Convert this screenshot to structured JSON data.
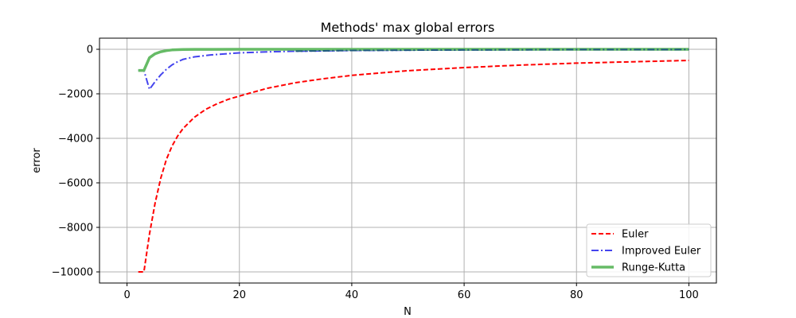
{
  "chart_data": {
    "type": "line",
    "title": "Methods' max global errors",
    "xlabel": "N",
    "ylabel": "error",
    "xlim": [
      -4.9,
      104.9
    ],
    "ylim": [
      -10500,
      500
    ],
    "xticks": [
      0,
      20,
      40,
      60,
      80,
      100
    ],
    "yticks": [
      -10000,
      -8000,
      -6000,
      -4000,
      -2000,
      0
    ],
    "xtick_labels": [
      "0",
      "20",
      "40",
      "60",
      "80",
      "100"
    ],
    "ytick_labels": [
      "−10000",
      "−8000",
      "−6000",
      "−4000",
      "−2000",
      "0"
    ],
    "grid": true,
    "legend_position": "lower-right",
    "series": [
      {
        "name": "Euler",
        "color": "#ff0000",
        "style": "dashed",
        "x": [
          2,
          3,
          4,
          5,
          6,
          7,
          8,
          9,
          10,
          12,
          14,
          16,
          18,
          20,
          25,
          30,
          35,
          40,
          50,
          60,
          70,
          80,
          90,
          100
        ],
        "y": [
          -10000,
          -10000,
          -8300,
          -6900,
          -5800,
          -4950,
          -4350,
          -3900,
          -3550,
          -3050,
          -2700,
          -2450,
          -2250,
          -2100,
          -1750,
          -1500,
          -1320,
          -1170,
          -960,
          -820,
          -710,
          -620,
          -560,
          -500
        ]
      },
      {
        "name": "Improved Euler",
        "color": "#4444ee",
        "style": "dashdot",
        "x": [
          2,
          3,
          4,
          5,
          6,
          7,
          8,
          9,
          10,
          12,
          15,
          20,
          25,
          30,
          40,
          50,
          60,
          80,
          100
        ],
        "y": [
          -950,
          -950,
          -1800,
          -1450,
          -1150,
          -900,
          -700,
          -560,
          -450,
          -340,
          -250,
          -160,
          -115,
          -85,
          -55,
          -38,
          -28,
          -15,
          -10
        ]
      },
      {
        "name": "Runge-Kutta",
        "color": "#66bb66",
        "style": "solid",
        "x": [
          2,
          3,
          4,
          5,
          6,
          7,
          8,
          10,
          12,
          15,
          20,
          30,
          40,
          60,
          80,
          100
        ],
        "y": [
          -950,
          -950,
          -380,
          -200,
          -110,
          -60,
          -30,
          -10,
          -5,
          -2,
          -1,
          0,
          0,
          0,
          0,
          0
        ]
      }
    ]
  }
}
